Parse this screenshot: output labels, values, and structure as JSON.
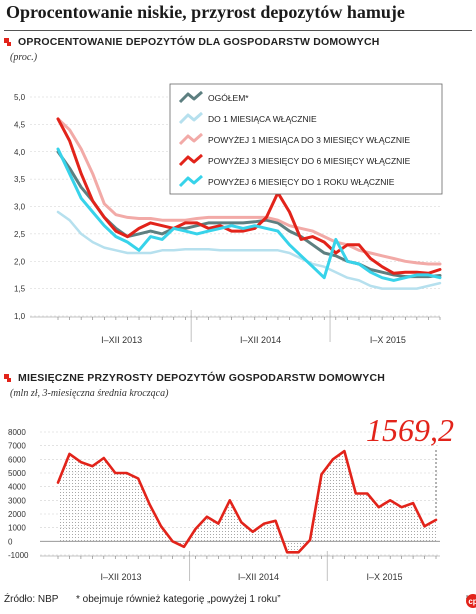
{
  "main_title": "Oprocentowanie niskie, przyrost depozytów hamuje",
  "chart_data": [
    {
      "type": "line",
      "title": "Oprocentowanie depozytów dla gospodarstw domowych",
      "subtitle": "(proc.)",
      "ylim": [
        1.0,
        5.0
      ],
      "yticks": [
        "5,0",
        "4,5",
        "4,0",
        "3,5",
        "3,0",
        "2,5",
        "2,0",
        "1,5",
        "1,0"
      ],
      "ytick_values": [
        5.0,
        4.5,
        4.0,
        3.5,
        3.0,
        2.5,
        2.0,
        1.5,
        1.0
      ],
      "period_labels": [
        "I–XII 2013",
        "I–XII 2014",
        "I–X 2015"
      ],
      "n_points": 34,
      "grid": true,
      "legend_position": "top-right",
      "series": [
        {
          "name": "OGÓŁEM*",
          "color": "#5d7f80",
          "width": 3,
          "values": [
            4.0,
            3.7,
            3.35,
            3.1,
            2.8,
            2.6,
            2.45,
            2.5,
            2.55,
            2.5,
            2.6,
            2.6,
            2.65,
            2.7,
            2.7,
            2.7,
            2.7,
            2.72,
            2.75,
            2.7,
            2.55,
            2.45,
            2.3,
            2.15,
            2.1,
            2.0,
            1.95,
            1.85,
            1.8,
            1.75,
            1.72,
            1.72,
            1.72,
            1.74
          ]
        },
        {
          "name": "DO 1 MIESIĄCA WŁĄCZNIE",
          "color": "#b6e0ee",
          "width": 2.5,
          "values": [
            2.9,
            2.75,
            2.5,
            2.35,
            2.25,
            2.2,
            2.15,
            2.15,
            2.15,
            2.2,
            2.2,
            2.22,
            2.22,
            2.22,
            2.2,
            2.2,
            2.2,
            2.2,
            2.2,
            2.2,
            2.15,
            2.05,
            1.95,
            1.9,
            1.8,
            1.7,
            1.65,
            1.55,
            1.5,
            1.5,
            1.5,
            1.5,
            1.55,
            1.6
          ]
        },
        {
          "name": "POWYŻEJ 1 MIESIĄCA DO 3 MIESIĘCY WŁĄCZNIE",
          "color": "#f2aaa7",
          "width": 3,
          "values": [
            4.6,
            4.4,
            4.05,
            3.6,
            3.05,
            2.85,
            2.8,
            2.78,
            2.78,
            2.75,
            2.75,
            2.75,
            2.78,
            2.8,
            2.8,
            2.8,
            2.8,
            2.8,
            2.8,
            2.75,
            2.65,
            2.6,
            2.55,
            2.45,
            2.35,
            2.3,
            2.2,
            2.15,
            2.1,
            2.05,
            2.0,
            1.97,
            1.95,
            1.95
          ]
        },
        {
          "name": "POWYŻEJ 3 MIESIĘCY DO 6 MIESIĘCY WŁĄCZNIE",
          "color": "#e2231a",
          "width": 3,
          "values": [
            4.6,
            4.2,
            3.6,
            3.1,
            2.8,
            2.55,
            2.45,
            2.6,
            2.7,
            2.65,
            2.6,
            2.7,
            2.7,
            2.6,
            2.65,
            2.55,
            2.55,
            2.6,
            2.8,
            3.25,
            2.9,
            2.4,
            2.45,
            2.35,
            2.15,
            2.3,
            2.3,
            2.05,
            1.9,
            1.78,
            1.8,
            1.8,
            1.78,
            1.85
          ]
        },
        {
          "name": "POWYŻEJ 6 MIESIĘCY DO 1 ROKU WŁĄCZNIE",
          "color": "#37d3ea",
          "width": 3,
          "values": [
            4.05,
            3.6,
            3.15,
            2.9,
            2.65,
            2.45,
            2.35,
            2.2,
            2.45,
            2.4,
            2.6,
            2.55,
            2.5,
            2.55,
            2.6,
            2.65,
            2.6,
            2.65,
            2.6,
            2.55,
            2.3,
            2.1,
            1.9,
            1.7,
            2.4,
            2.0,
            1.95,
            1.8,
            1.7,
            1.65,
            1.7,
            1.75,
            1.75,
            1.7
          ]
        }
      ]
    },
    {
      "type": "area",
      "title": "Miesięczne przyrosty depozytów gospodarstw domowych",
      "subtitle": "(mln zł, 3-miesięczna średnia krocząca)",
      "ylim": [
        -1000,
        8000
      ],
      "yticks": [
        "8000",
        "7000",
        "6000",
        "5000",
        "4000",
        "3000",
        "2000",
        "1000",
        "0",
        "-1000"
      ],
      "ytick_values": [
        8000,
        7000,
        6000,
        5000,
        4000,
        3000,
        2000,
        1000,
        0,
        -1000
      ],
      "period_labels": [
        "I–XII 2013",
        "I–XII 2014",
        "I–X 2015"
      ],
      "annotation": "1569,2",
      "grid": true,
      "series": [
        {
          "name": "",
          "color": "#e2231a",
          "values": [
            4300,
            6400,
            5800,
            5500,
            6100,
            5000,
            5000,
            4600,
            2700,
            1100,
            0,
            -400,
            900,
            1800,
            1300,
            3000,
            1400,
            700,
            1300,
            1500,
            -800,
            -800,
            100,
            4900,
            6000,
            6600,
            3500,
            3500,
            2500,
            3000,
            2500,
            2800,
            1100,
            1569.2
          ]
        }
      ]
    }
  ],
  "footer": {
    "source": "Źródło: NBP",
    "note": "* obejmuje również kategorię „powyżej 1 roku”",
    "brand": "ŁR"
  }
}
